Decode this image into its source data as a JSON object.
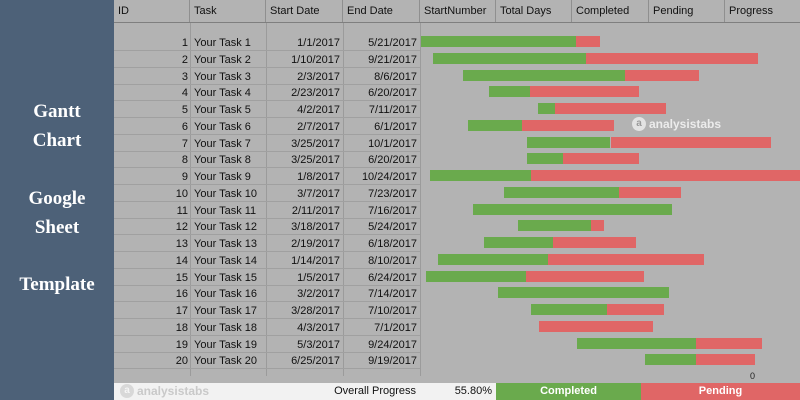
{
  "sidebar": {
    "title_lines": [
      "Gantt",
      "Chart",
      "Google",
      "Sheet",
      "Template"
    ]
  },
  "columns": {
    "id": "ID",
    "task": "Task",
    "start_date": "Start Date",
    "end_date": "End Date",
    "start_number": "StartNumber",
    "total_days": "Total Days",
    "completed": "Completed",
    "pending": "Pending",
    "progress": "Progress"
  },
  "rows": [
    {
      "id": "1",
      "task": "Your Task 1",
      "start": "1/1/2017",
      "end": "5/21/2017"
    },
    {
      "id": "2",
      "task": "Your Task 2",
      "start": "1/10/2017",
      "end": "9/21/2017"
    },
    {
      "id": "3",
      "task": "Your Task 3",
      "start": "2/3/2017",
      "end": "8/6/2017"
    },
    {
      "id": "4",
      "task": "Your Task 4",
      "start": "2/23/2017",
      "end": "6/20/2017"
    },
    {
      "id": "5",
      "task": "Your Task 5",
      "start": "4/2/2017",
      "end": "7/11/2017"
    },
    {
      "id": "6",
      "task": "Your Task 6",
      "start": "2/7/2017",
      "end": "6/1/2017"
    },
    {
      "id": "7",
      "task": "Your Task 7",
      "start": "3/25/2017",
      "end": "10/1/2017"
    },
    {
      "id": "8",
      "task": "Your Task 8",
      "start": "3/25/2017",
      "end": "6/20/2017"
    },
    {
      "id": "9",
      "task": "Your Task 9",
      "start": "1/8/2017",
      "end": "10/24/2017"
    },
    {
      "id": "10",
      "task": "Your Task 10",
      "start": "3/7/2017",
      "end": "7/23/2017"
    },
    {
      "id": "11",
      "task": "Your Task 11",
      "start": "2/11/2017",
      "end": "7/16/2017"
    },
    {
      "id": "12",
      "task": "Your Task 12",
      "start": "3/18/2017",
      "end": "5/24/2017"
    },
    {
      "id": "13",
      "task": "Your Task 13",
      "start": "2/19/2017",
      "end": "6/18/2017"
    },
    {
      "id": "14",
      "task": "Your Task 14",
      "start": "1/14/2017",
      "end": "8/10/2017"
    },
    {
      "id": "15",
      "task": "Your Task 15",
      "start": "1/5/2017",
      "end": "6/24/2017"
    },
    {
      "id": "16",
      "task": "Your Task 16",
      "start": "3/2/2017",
      "end": "7/14/2017"
    },
    {
      "id": "17",
      "task": "Your Task 17",
      "start": "3/28/2017",
      "end": "7/10/2017"
    },
    {
      "id": "18",
      "task": "Your Task 18",
      "start": "4/3/2017",
      "end": "7/1/2017"
    },
    {
      "id": "19",
      "task": "Your Task 19",
      "start": "5/3/2017",
      "end": "9/24/2017"
    },
    {
      "id": "20",
      "task": "Your Task 20",
      "start": "6/25/2017",
      "end": "9/19/2017"
    }
  ],
  "chart_data": {
    "type": "bar",
    "subtype": "stacked-horizontal-gantt",
    "x_axis": {
      "type": "date",
      "min": "2017-01-01",
      "max": "2017-10-24",
      "tick_labels": [
        "0"
      ]
    },
    "series": [
      {
        "name": "Completed",
        "color": "#6aaa4d"
      },
      {
        "name": "Pending",
        "color": "#e06666"
      }
    ],
    "tasks": [
      {
        "task": "Your Task 1",
        "start": "2017-01-01",
        "completed_end": "2017-05-02",
        "end": "2017-05-21"
      },
      {
        "task": "Your Task 2",
        "start": "2017-01-10",
        "completed_end": "2017-05-10",
        "end": "2017-09-21"
      },
      {
        "task": "Your Task 3",
        "start": "2017-02-03",
        "completed_end": "2017-06-09",
        "end": "2017-08-06"
      },
      {
        "task": "Your Task 4",
        "start": "2017-02-23",
        "completed_end": "2017-03-27",
        "end": "2017-06-20"
      },
      {
        "task": "Your Task 5",
        "start": "2017-04-02",
        "completed_end": "2017-04-16",
        "end": "2017-07-11"
      },
      {
        "task": "Your Task 6",
        "start": "2017-02-07",
        "completed_end": "2017-03-21",
        "end": "2017-06-01"
      },
      {
        "task": "Your Task 7",
        "start": "2017-03-25",
        "completed_end": "2017-05-29",
        "end": "2017-10-01"
      },
      {
        "task": "Your Task 8",
        "start": "2017-03-25",
        "completed_end": "2017-04-22",
        "end": "2017-06-20"
      },
      {
        "task": "Your Task 9",
        "start": "2017-01-08",
        "completed_end": "2017-03-28",
        "end": "2017-10-24"
      },
      {
        "task": "Your Task 10",
        "start": "2017-03-07",
        "completed_end": "2017-06-05",
        "end": "2017-07-23"
      },
      {
        "task": "Your Task 11",
        "start": "2017-02-11",
        "completed_end": "2017-07-16",
        "end": "2017-07-16"
      },
      {
        "task": "Your Task 12",
        "start": "2017-03-18",
        "completed_end": "2017-05-14",
        "end": "2017-05-24"
      },
      {
        "task": "Your Task 13",
        "start": "2017-02-19",
        "completed_end": "2017-04-14",
        "end": "2017-06-18"
      },
      {
        "task": "Your Task 14",
        "start": "2017-01-14",
        "completed_end": "2017-04-10",
        "end": "2017-08-10"
      },
      {
        "task": "Your Task 15",
        "start": "2017-01-05",
        "completed_end": "2017-03-24",
        "end": "2017-06-24"
      },
      {
        "task": "Your Task 16",
        "start": "2017-03-02",
        "completed_end": "2017-07-14",
        "end": "2017-07-14"
      },
      {
        "task": "Your Task 17",
        "start": "2017-03-28",
        "completed_end": "2017-05-26",
        "end": "2017-07-10"
      },
      {
        "task": "Your Task 18",
        "start": "2017-04-03",
        "completed_end": "2017-04-03",
        "end": "2017-07-01"
      },
      {
        "task": "Your Task 19",
        "start": "2017-05-03",
        "completed_end": "2017-08-04",
        "end": "2017-09-24"
      },
      {
        "task": "Your Task 20",
        "start": "2017-06-25",
        "completed_end": "2017-08-04",
        "end": "2017-09-19"
      }
    ]
  },
  "watermark": {
    "text": "analysistabs"
  },
  "footer": {
    "progress_label": "Overall Progress",
    "progress_value": "55.80%",
    "completed_label": "Completed",
    "pending_label": "Pending"
  }
}
